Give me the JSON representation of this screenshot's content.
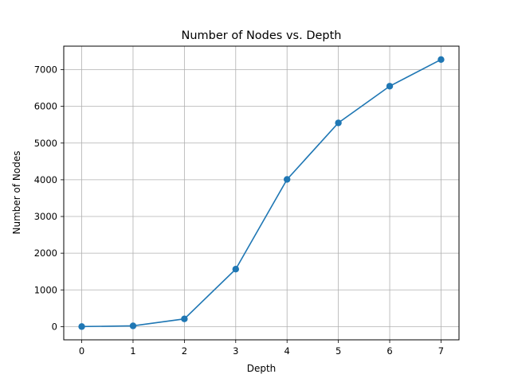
{
  "chart_data": {
    "type": "line",
    "title": "Number of Nodes vs. Depth",
    "xlabel": "Depth",
    "ylabel": "Number of Nodes",
    "x": [
      0,
      1,
      2,
      3,
      4,
      5,
      6,
      7
    ],
    "series": [
      {
        "values": [
          1,
          20,
          210,
          1565,
          4010,
          5550,
          6550,
          7275
        ]
      }
    ],
    "xticks": [
      "0",
      "1",
      "2",
      "3",
      "4",
      "5",
      "6",
      "7"
    ],
    "yticks": [
      "0",
      "1000",
      "2000",
      "3000",
      "4000",
      "5000",
      "6000",
      "7000"
    ],
    "xlim": [
      -0.35,
      7.35
    ],
    "ylim": [
      -360,
      7640
    ],
    "grid": true,
    "marker": "circle",
    "line_color": "#1f77b4",
    "grid_color": "#b0b0b0"
  }
}
